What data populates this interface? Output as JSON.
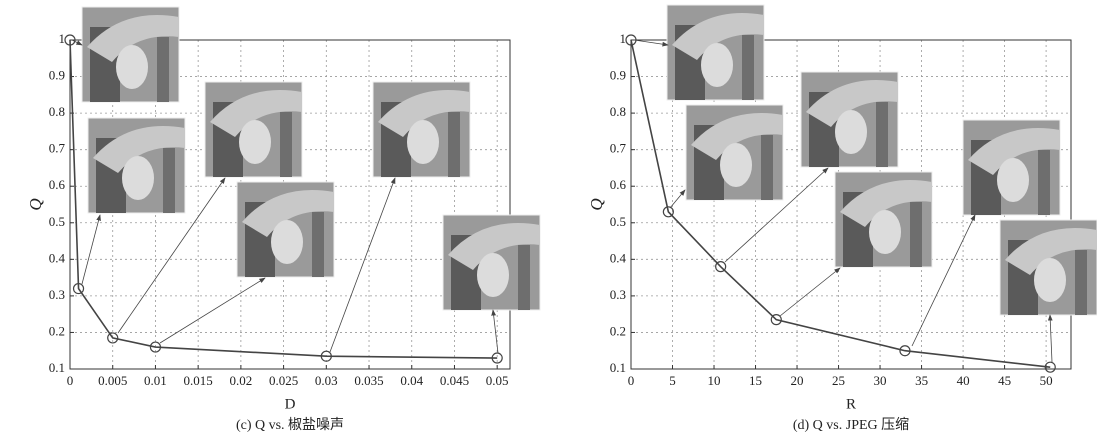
{
  "chart_data": [
    {
      "type": "line",
      "title": "(c) Q vs. 椒盐噪声",
      "xlabel": "D",
      "ylabel": "Q",
      "x": [
        0,
        0.001,
        0.005,
        0.01,
        0.03,
        0.05
      ],
      "series": [
        {
          "name": "Q",
          "color": "#444444",
          "values": [
            1,
            0.32,
            0.185,
            0.16,
            0.135,
            0.13
          ]
        }
      ],
      "xlim": [
        0,
        0.0515
      ],
      "xticks": [
        0,
        0.005,
        0.01,
        0.015,
        0.02,
        0.025,
        0.03,
        0.035,
        0.04,
        0.045,
        0.05
      ],
      "ylim": [
        0.1,
        1
      ],
      "yticks": [
        0.1,
        0.2,
        0.3,
        0.4,
        0.5,
        0.6,
        0.7,
        0.8,
        0.9,
        1
      ],
      "grid": true,
      "marker": "circle"
    },
    {
      "type": "line",
      "title": "(d) Q vs. JPEG 压缩",
      "xlabel": "R",
      "ylabel": "Q",
      "x": [
        0,
        4.5,
        10.8,
        17.5,
        33,
        50.5
      ],
      "series": [
        {
          "name": "Q",
          "color": "#444444",
          "values": [
            1,
            0.53,
            0.38,
            0.235,
            0.15,
            0.105
          ]
        }
      ],
      "xlim": [
        0,
        53
      ],
      "xticks": [
        0,
        5,
        10,
        15,
        20,
        25,
        30,
        35,
        40,
        45,
        50
      ],
      "ylim": [
        0.1,
        1
      ],
      "yticks": [
        0.1,
        0.2,
        0.3,
        0.4,
        0.5,
        0.6,
        0.7,
        0.8,
        0.9,
        1
      ],
      "grid": true,
      "marker": "circle"
    }
  ]
}
